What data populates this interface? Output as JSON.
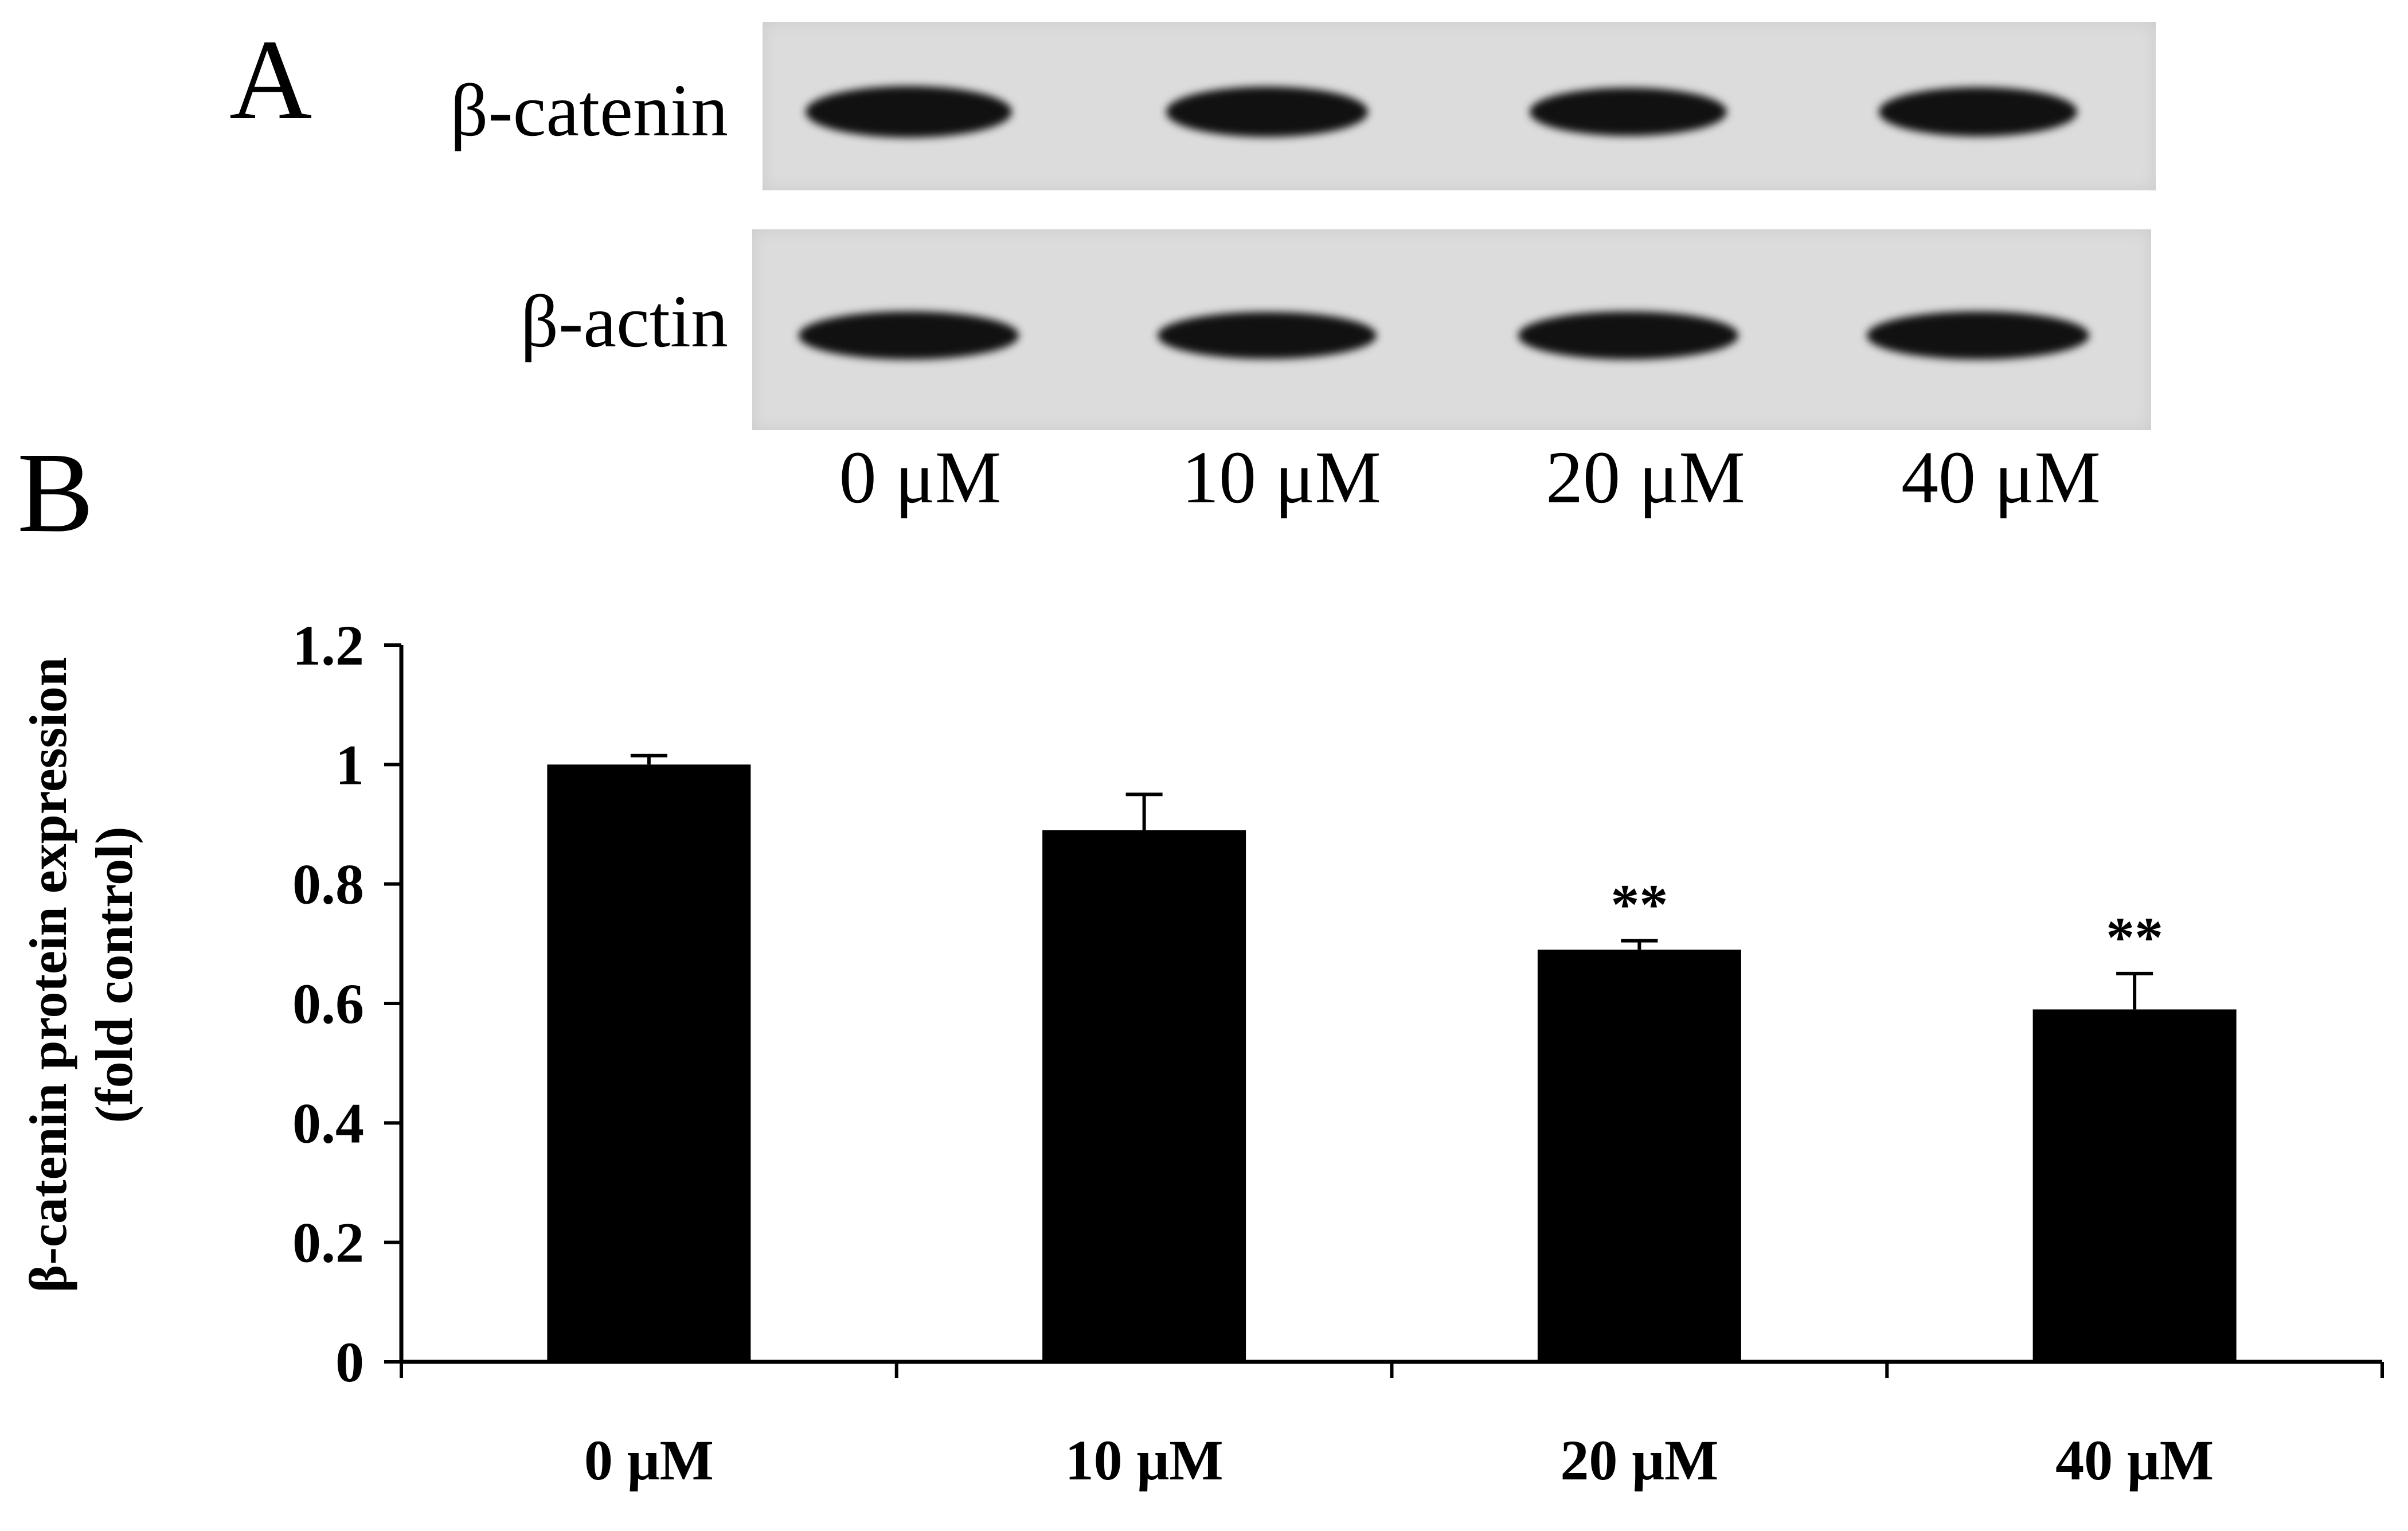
{
  "panel_a": {
    "letter": "A",
    "rows": [
      {
        "label": "β-catenin",
        "band_intensity": [
          1.0,
          0.85,
          0.72,
          0.75
        ]
      },
      {
        "label": "β-actin",
        "band_intensity": [
          0.9,
          0.85,
          0.9,
          0.95
        ]
      }
    ],
    "lanes": [
      "0 μM",
      "10 μM",
      "20 μM",
      "40 μM"
    ]
  },
  "panel_b": {
    "letter": "B"
  },
  "chart_data": {
    "type": "bar",
    "title": "",
    "xlabel": "",
    "ylabel": [
      "β-catenin protein expression",
      "(fold control)"
    ],
    "categories": [
      "0 μM",
      "10 μM",
      "20 μM",
      "40 μM"
    ],
    "values": [
      1.0,
      0.89,
      0.69,
      0.59
    ],
    "error": [
      0.015,
      0.06,
      0.015,
      0.06
    ],
    "significance": [
      "",
      "",
      "**",
      "**"
    ],
    "ylim": [
      0,
      1.2
    ],
    "yticks": [
      0,
      0.2,
      0.4,
      0.6,
      0.8,
      1,
      1.2
    ],
    "ytick_labels": [
      "0",
      "0.2",
      "0.4",
      "0.6",
      "0.8",
      "1",
      "1.2"
    ],
    "bar_color": "#000000",
    "grid": false
  }
}
